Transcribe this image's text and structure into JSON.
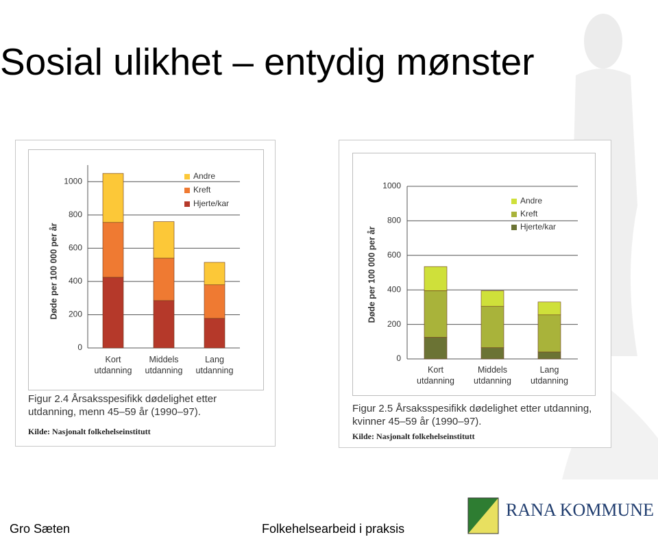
{
  "title": "Sosial ulikhet – entydig mønster",
  "footer_left": "Gro Sæten",
  "footer_center": "Folkehelsearbeid i praksis",
  "logo_text": "RANA KOMMUNE",
  "chart_data": [
    {
      "type": "bar",
      "stacked": true,
      "ylabel": "Døde per 100 000 per år",
      "categories": [
        "Kort utdanning",
        "Middels utdanning",
        "Lang utdanning"
      ],
      "series": [
        {
          "name": "Hjerte/kar",
          "color": "#b5392a",
          "values": [
            425,
            285,
            178
          ]
        },
        {
          "name": "Kreft",
          "color": "#ef7a32",
          "values": [
            330,
            255,
            202
          ]
        },
        {
          "name": "Andre",
          "color": "#fcc838",
          "values": [
            295,
            220,
            135
          ]
        }
      ],
      "ylim": [
        0,
        1100
      ],
      "yticks": [
        0,
        200,
        400,
        600,
        800,
        1000
      ],
      "grid": true,
      "caption": "Figur 2.4  Årsaksspesifikk dødelighet etter utdanning, menn 45–59 år (1990–97).",
      "source": "Kilde: Nasjonalt folkehelseinstitutt"
    },
    {
      "type": "bar",
      "stacked": true,
      "ylabel": "Døde per 100 000 per år",
      "categories": [
        "Kort utdanning",
        "Middels utdanning",
        "Lang utdanning"
      ],
      "series": [
        {
          "name": "Hjerte/kar",
          "color": "#6b7334",
          "values": [
            125,
            65,
            40
          ]
        },
        {
          "name": "Kreft",
          "color": "#a9b33a",
          "values": [
            270,
            240,
            215
          ]
        },
        {
          "name": "Andre",
          "color": "#cfe03a",
          "values": [
            140,
            90,
            75
          ]
        }
      ],
      "ylim": [
        0,
        1000
      ],
      "yticks": [
        0,
        200,
        400,
        600,
        800,
        1000
      ],
      "grid": true,
      "caption": "Figur 2.5  Årsaksspesifikk dødelighet etter utdanning, kvinner 45–59 år (1990–97).",
      "source": "Kilde: Nasjonalt folkehelseinstitutt"
    }
  ]
}
